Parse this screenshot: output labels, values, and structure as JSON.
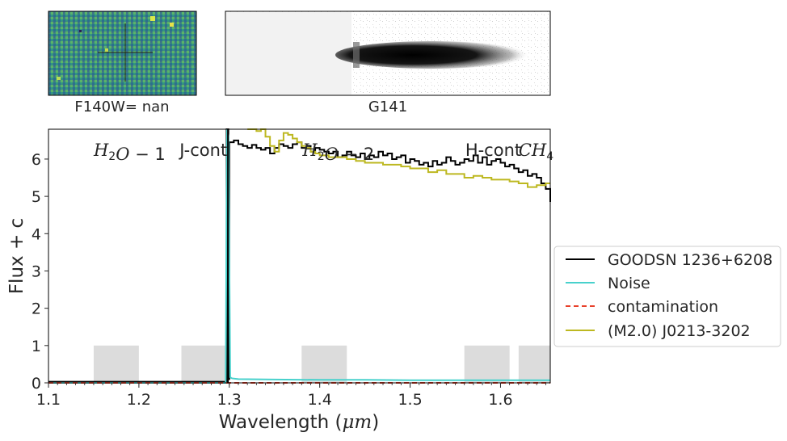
{
  "panels": {
    "direct_label": "F140W= nan",
    "grism_label": "G141"
  },
  "chart_data": {
    "type": "line",
    "xlabel": "Wavelength (μm)",
    "ylabel": "Flux + c",
    "xlim": [
      1.1,
      1.655
    ],
    "ylim": [
      0,
      6.8
    ],
    "xticks": [
      1.1,
      1.2,
      1.3,
      1.4,
      1.5,
      1.6
    ],
    "xtick_labels": [
      "1.1",
      "1.2",
      "1.3",
      "1.4",
      "1.5",
      "1.6"
    ],
    "yticks": [
      0,
      1,
      2,
      3,
      4,
      5,
      6
    ],
    "ytick_labels": [
      "0",
      "1",
      "2",
      "3",
      "4",
      "5",
      "6"
    ],
    "grid": false,
    "legend_position": "right",
    "vertical_line_x": 1.2985,
    "bands": [
      {
        "label": "H2O-1",
        "x0": 1.15,
        "x1": 1.2,
        "height": 1
      },
      {
        "label": "J-cont",
        "x0": 1.247,
        "x1": 1.2975,
        "height": 1
      },
      {
        "label": "H2O-2",
        "x0": 1.38,
        "x1": 1.43,
        "height": 1
      },
      {
        "label": "H-cont",
        "x0": 1.56,
        "x1": 1.61,
        "height": 1
      },
      {
        "label": "CH4",
        "x0": 1.62,
        "x1": 1.655,
        "height": 1
      }
    ],
    "band_labels": [
      {
        "parts": [
          {
            "text": "H",
            "italic": true
          },
          {
            "text": "2",
            "sub": true
          },
          {
            "text": "O",
            "italic": true
          },
          {
            "text": " − 1"
          }
        ],
        "x": 1.15
      },
      {
        "parts": [
          {
            "text": "J-cont"
          }
        ],
        "x": 1.245
      },
      {
        "parts": [
          {
            "text": "H",
            "italic": true
          },
          {
            "text": "2",
            "sub": true
          },
          {
            "text": "O",
            "italic": true
          },
          {
            "text": " − 2"
          }
        ],
        "x": 1.381
      },
      {
        "parts": [
          {
            "text": "H-cont"
          }
        ],
        "x": 1.561
      },
      {
        "parts": [
          {
            "text": "CH",
            "italic": true
          },
          {
            "text": "4",
            "sub": true
          }
        ],
        "x": 1.62
      }
    ],
    "series": [
      {
        "name": "GOODSN 1236+6208",
        "color": "#000000",
        "style": "step",
        "x": [
          1.1,
          1.295,
          1.297,
          1.299,
          1.3,
          1.305,
          1.31,
          1.315,
          1.32,
          1.325,
          1.33,
          1.335,
          1.34,
          1.345,
          1.35,
          1.355,
          1.36,
          1.365,
          1.37,
          1.375,
          1.38,
          1.385,
          1.39,
          1.395,
          1.4,
          1.405,
          1.41,
          1.415,
          1.42,
          1.425,
          1.43,
          1.435,
          1.44,
          1.445,
          1.45,
          1.455,
          1.46,
          1.465,
          1.47,
          1.475,
          1.48,
          1.485,
          1.49,
          1.495,
          1.5,
          1.505,
          1.51,
          1.515,
          1.52,
          1.525,
          1.53,
          1.535,
          1.54,
          1.545,
          1.55,
          1.555,
          1.56,
          1.565,
          1.57,
          1.575,
          1.58,
          1.585,
          1.59,
          1.595,
          1.6,
          1.605,
          1.61,
          1.615,
          1.62,
          1.625,
          1.63,
          1.635,
          1.64,
          1.645,
          1.65,
          1.655
        ],
        "y": [
          0.03,
          0.03,
          6.8,
          0.1,
          6.45,
          6.5,
          6.4,
          6.35,
          6.3,
          6.38,
          6.3,
          6.25,
          6.3,
          6.15,
          6.3,
          6.4,
          6.35,
          6.3,
          6.4,
          6.45,
          6.3,
          6.35,
          6.2,
          6.3,
          6.25,
          6.2,
          6.15,
          6.2,
          6.05,
          6.1,
          6.2,
          6.1,
          6.05,
          6.15,
          6.0,
          6.1,
          6.05,
          6.2,
          6.1,
          6.15,
          6.0,
          6.05,
          6.1,
          5.9,
          6.0,
          5.95,
          5.85,
          5.9,
          5.8,
          5.95,
          5.85,
          5.9,
          6.05,
          5.95,
          5.85,
          5.9,
          6.0,
          5.95,
          6.1,
          5.9,
          6.05,
          5.85,
          5.95,
          6.0,
          5.9,
          5.8,
          5.85,
          5.75,
          5.65,
          5.7,
          5.55,
          5.6,
          5.5,
          5.35,
          5.2,
          4.85
        ]
      },
      {
        "name": "Noise",
        "color": "#48d1cc",
        "style": "line",
        "x": [
          1.1,
          1.296,
          1.2975,
          1.299,
          1.301,
          1.303,
          1.31,
          1.35,
          1.4,
          1.45,
          1.5,
          1.55,
          1.6,
          1.655
        ],
        "y": [
          0.0,
          0.0,
          6.8,
          6.6,
          0.15,
          0.12,
          0.1,
          0.09,
          0.08,
          0.08,
          0.07,
          0.07,
          0.07,
          0.07
        ]
      },
      {
        "name": "contamination",
        "color": "#e8402a",
        "style": "dashed",
        "x": [
          1.1,
          1.655
        ],
        "y": [
          0.0,
          0.0
        ]
      },
      {
        "name": "(M2.0) J0213-3202",
        "color": "#bdb820",
        "style": "step",
        "x": [
          1.32,
          1.33,
          1.335,
          1.34,
          1.345,
          1.35,
          1.355,
          1.36,
          1.365,
          1.37,
          1.375,
          1.38,
          1.385,
          1.39,
          1.395,
          1.4,
          1.41,
          1.42,
          1.43,
          1.44,
          1.45,
          1.46,
          1.47,
          1.48,
          1.49,
          1.5,
          1.51,
          1.52,
          1.53,
          1.54,
          1.55,
          1.56,
          1.57,
          1.58,
          1.59,
          1.6,
          1.61,
          1.62,
          1.63,
          1.64,
          1.65,
          1.655
        ],
        "y": [
          6.8,
          6.75,
          6.8,
          6.6,
          6.35,
          6.2,
          6.5,
          6.7,
          6.65,
          6.55,
          6.45,
          6.35,
          6.3,
          6.2,
          6.15,
          6.1,
          6.05,
          6.05,
          6.0,
          5.95,
          5.9,
          5.9,
          5.85,
          5.85,
          5.8,
          5.75,
          5.75,
          5.65,
          5.7,
          5.6,
          5.6,
          5.5,
          5.55,
          5.5,
          5.45,
          5.45,
          5.4,
          5.35,
          5.25,
          5.3,
          5.35,
          5.35
        ]
      }
    ]
  }
}
